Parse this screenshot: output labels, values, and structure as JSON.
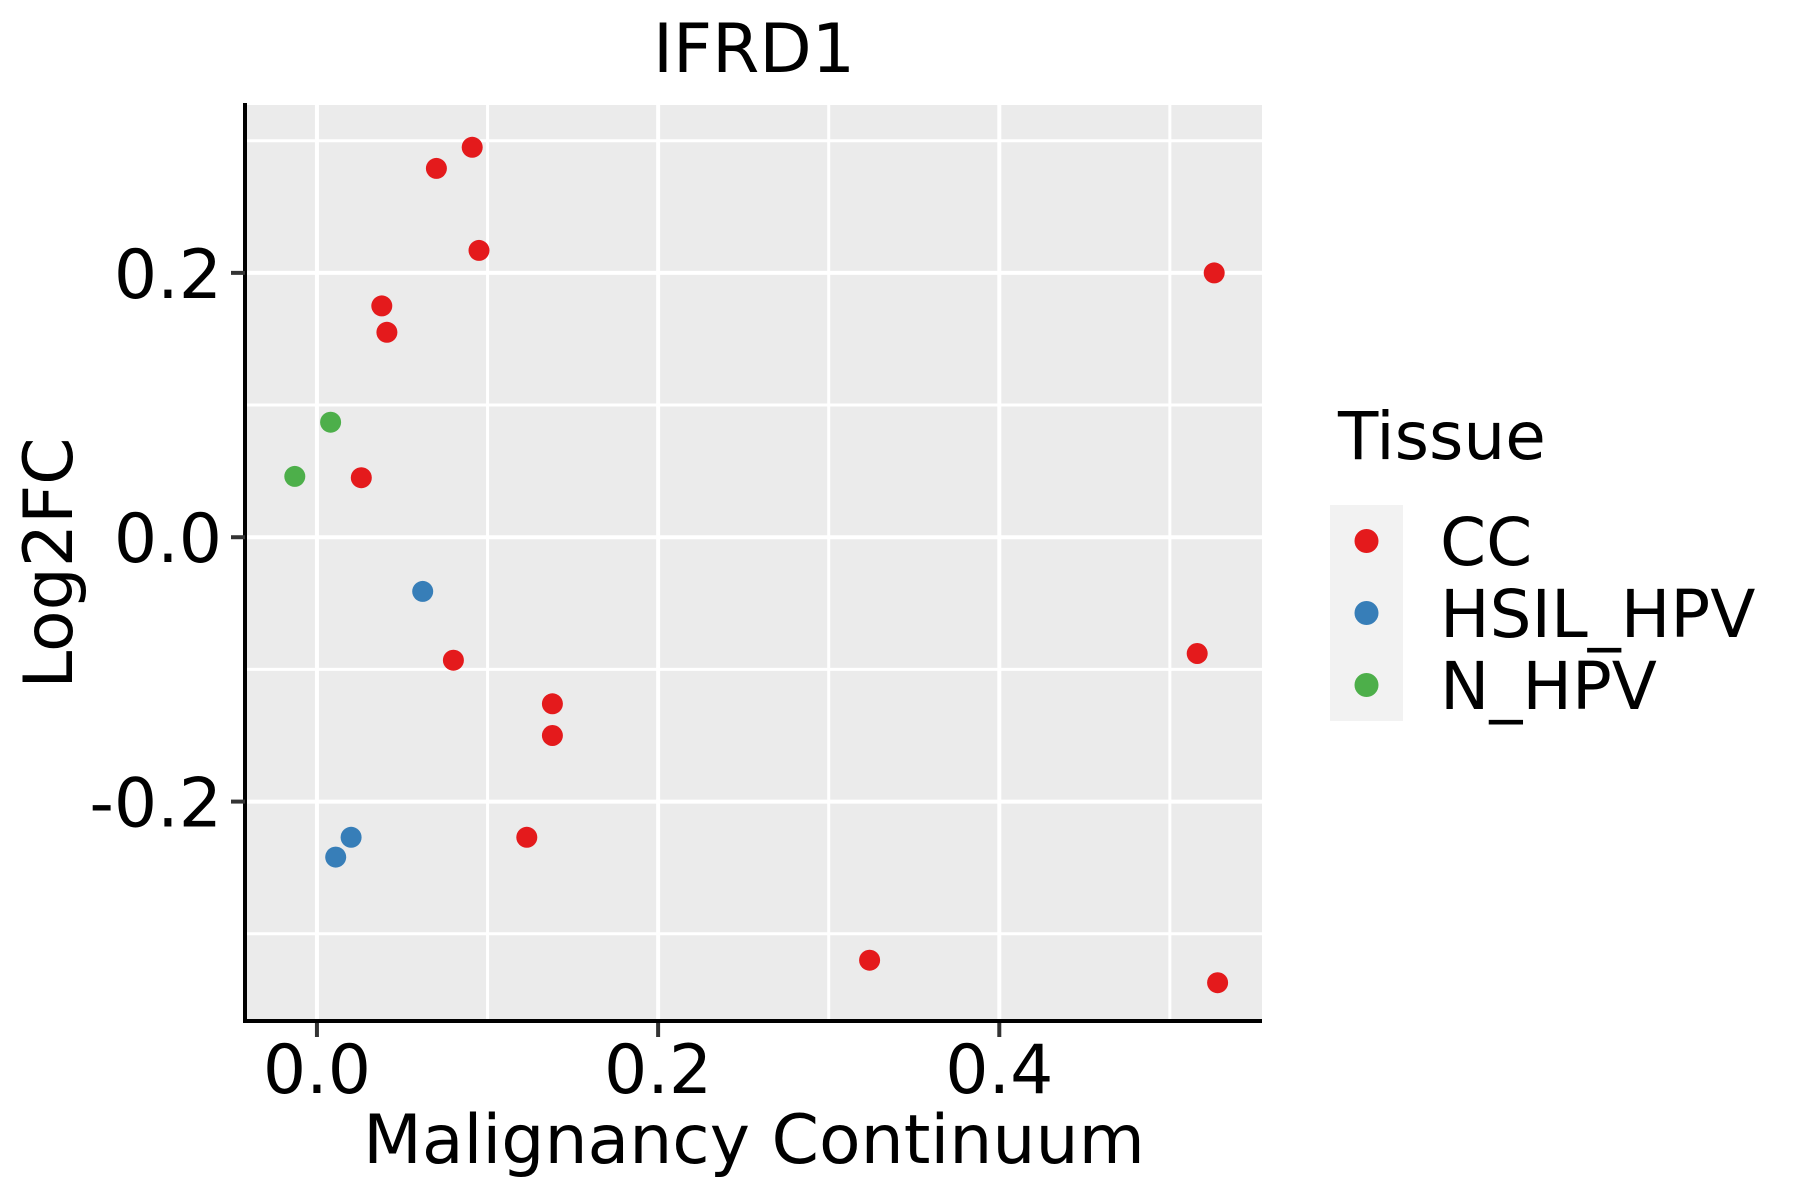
{
  "chart_data": {
    "type": "scatter",
    "title": "IFRD1",
    "xlabel": "Malignancy Continuum",
    "ylabel": "Log2FC",
    "legend_title": "Tissue",
    "legend_position": "right",
    "grid": "on",
    "xlim": [
      -0.041,
      0.554
    ],
    "ylim": [
      -0.366,
      0.327
    ],
    "x_ticks": [
      {
        "value": 0.0,
        "label": "0.0"
      },
      {
        "value": 0.2,
        "label": "0.2"
      },
      {
        "value": 0.4,
        "label": "0.4"
      }
    ],
    "y_ticks": [
      {
        "value": 0.2,
        "label": "0.2"
      },
      {
        "value": 0.0,
        "label": "0.0"
      },
      {
        "value": -0.2,
        "label": "-0.2"
      }
    ],
    "x_minor_gridlines": [
      0.1,
      0.3,
      0.5
    ],
    "y_minor_gridlines": [
      0.3,
      0.1,
      -0.1,
      -0.3
    ],
    "panel_bg": "#EBEBEB",
    "grid_color": "#FFFFFF",
    "legend_key_bg": "#F2F2F2",
    "axis_color": "#000000",
    "tick_color": "#333333",
    "series": [
      {
        "name": "CC",
        "color": "#E41A1C",
        "points": [
          [
            0.091,
            0.295
          ],
          [
            0.07,
            0.279
          ],
          [
            0.095,
            0.217
          ],
          [
            0.038,
            0.175
          ],
          [
            0.041,
            0.155
          ],
          [
            0.026,
            0.045
          ],
          [
            0.08,
            -0.093
          ],
          [
            0.138,
            -0.126
          ],
          [
            0.138,
            -0.15
          ],
          [
            0.123,
            -0.227
          ],
          [
            0.324,
            -0.32
          ],
          [
            0.528,
            -0.337
          ],
          [
            0.526,
            0.2
          ],
          [
            0.516,
            -0.088
          ]
        ]
      },
      {
        "name": "HSIL_HPV",
        "color": "#377EB8",
        "points": [
          [
            0.062,
            -0.041
          ],
          [
            0.02,
            -0.227
          ],
          [
            0.011,
            -0.242
          ]
        ]
      },
      {
        "name": "N_HPV",
        "color": "#4DAF4A",
        "points": [
          [
            0.008,
            0.087
          ],
          [
            -0.013,
            0.046
          ]
        ]
      }
    ]
  }
}
